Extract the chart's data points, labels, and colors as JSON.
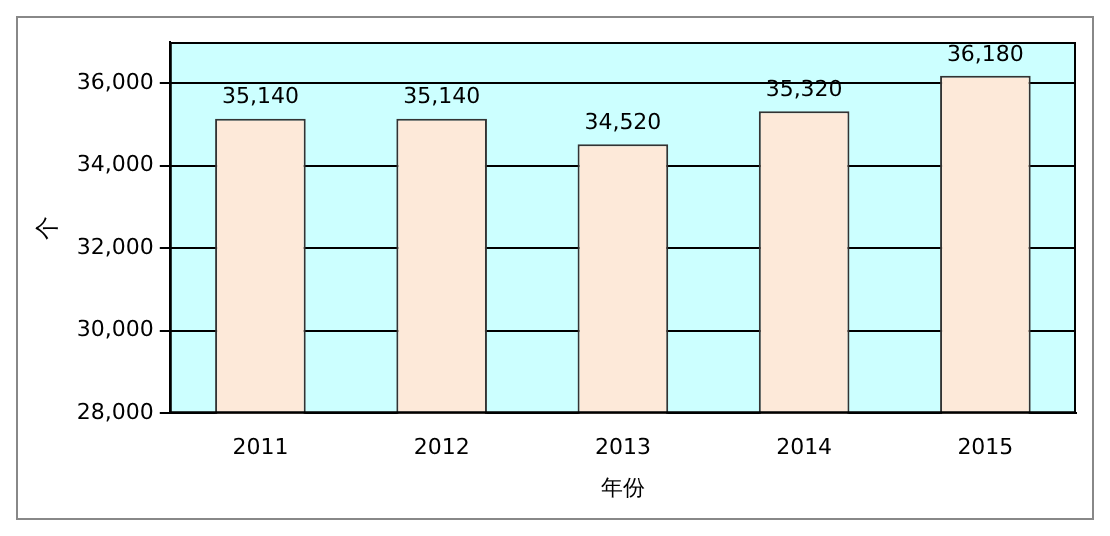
{
  "chart_data": {
    "type": "bar",
    "xlabel": "年份",
    "ylabel": "个",
    "categories": [
      "2011",
      "2012",
      "2013",
      "2014",
      "2015"
    ],
    "values": [
      35140,
      35140,
      34520,
      35320,
      36180
    ],
    "color": "#fde9d9",
    "ylim": [
      28000,
      37000
    ],
    "yticks": [
      {
        "value": 28000,
        "label": "28,000"
      },
      {
        "value": 30000,
        "label": "30,000"
      },
      {
        "value": 32000,
        "label": "32,000"
      },
      {
        "value": 34000,
        "label": "34,000"
      },
      {
        "value": 36000,
        "label": "36,000"
      }
    ],
    "value_labels": [
      "35,140",
      "35,140",
      "34,520",
      "35,320",
      "36,180"
    ],
    "grid": "y",
    "legend": false
  }
}
